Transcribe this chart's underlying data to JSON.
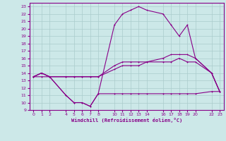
{
  "xlabel": "Windchill (Refroidissement éolien,°C)",
  "bg_color": "#cce8e8",
  "grid_color": "#aacccc",
  "line_color": "#880088",
  "xlim": [
    -0.5,
    23.5
  ],
  "ylim": [
    9,
    23.5
  ],
  "xticks": [
    0,
    1,
    2,
    4,
    5,
    6,
    7,
    8,
    10,
    11,
    12,
    13,
    14,
    16,
    17,
    18,
    19,
    20,
    22,
    23
  ],
  "yticks": [
    9,
    10,
    11,
    12,
    13,
    14,
    15,
    16,
    17,
    18,
    19,
    20,
    21,
    22,
    23
  ],
  "series1_x": [
    0,
    1,
    2,
    4,
    5,
    6,
    7,
    8,
    10,
    11,
    12,
    13,
    14,
    16,
    17,
    18,
    19,
    20,
    22,
    23
  ],
  "series1_y": [
    13.5,
    14.0,
    13.5,
    11.0,
    10.0,
    10.0,
    9.5,
    11.2,
    20.5,
    22.0,
    22.5,
    23.0,
    22.5,
    22.0,
    20.5,
    19.0,
    20.5,
    16.0,
    14.0,
    11.5
  ],
  "series2_x": [
    0,
    1,
    2,
    4,
    5,
    6,
    7,
    8,
    10,
    11,
    12,
    13,
    14,
    16,
    17,
    18,
    19,
    20,
    22,
    23
  ],
  "series2_y": [
    13.5,
    14.0,
    13.5,
    13.5,
    13.5,
    13.5,
    13.5,
    13.5,
    15.0,
    15.5,
    15.5,
    15.5,
    15.5,
    16.0,
    16.5,
    16.5,
    16.5,
    16.0,
    14.0,
    11.5
  ],
  "series3_x": [
    0,
    1,
    2,
    4,
    5,
    6,
    7,
    8,
    10,
    11,
    12,
    13,
    14,
    16,
    17,
    18,
    19,
    20,
    22,
    23
  ],
  "series3_y": [
    13.5,
    14.0,
    13.5,
    13.5,
    13.5,
    13.5,
    13.5,
    13.5,
    14.5,
    15.0,
    15.0,
    15.0,
    15.5,
    15.5,
    15.5,
    16.0,
    15.5,
    15.5,
    14.0,
    11.5
  ],
  "series4_x": [
    0,
    1,
    2,
    4,
    5,
    6,
    7,
    8,
    10,
    11,
    12,
    13,
    14,
    16,
    17,
    18,
    19,
    20,
    22,
    23
  ],
  "series4_y": [
    13.5,
    13.5,
    13.5,
    11.0,
    10.0,
    10.0,
    9.5,
    11.2,
    11.2,
    11.2,
    11.2,
    11.2,
    11.2,
    11.2,
    11.2,
    11.2,
    11.2,
    11.2,
    11.5,
    11.5
  ]
}
